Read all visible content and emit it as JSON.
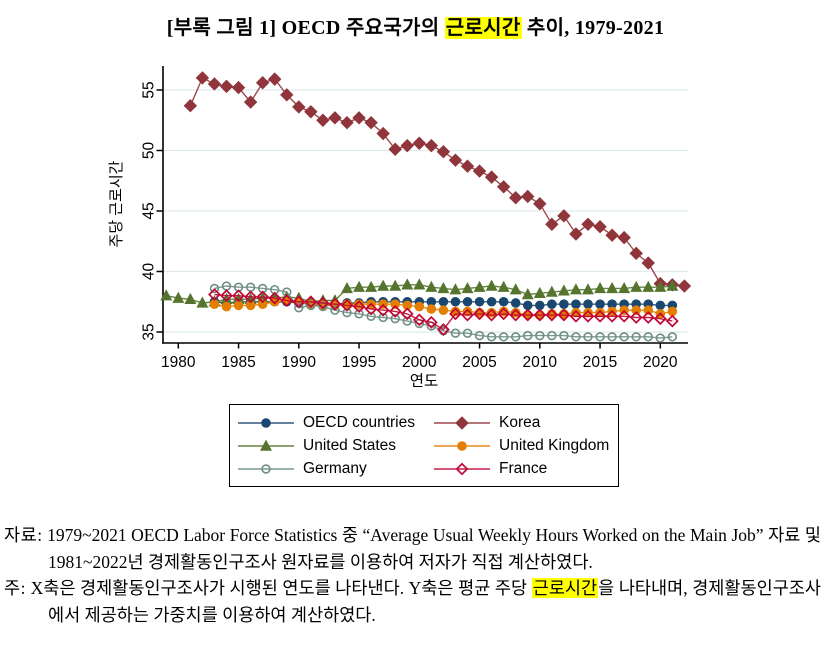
{
  "title": {
    "prefix": "[부록 그림 1] OECD 주요국가의 ",
    "highlight": "근로시간",
    "suffix": " 추이, 1979-2021"
  },
  "highlight_color": "#ffff00",
  "chart_data": {
    "type": "line",
    "xlabel": "연도",
    "ylabel": "주당 근로시간",
    "x_ticks": [
      1980,
      1985,
      1990,
      1995,
      2000,
      2005,
      2010,
      2015,
      2020
    ],
    "y_ticks": [
      35,
      40,
      45,
      50,
      55
    ],
    "xlim": [
      1978.5,
      2022.8
    ],
    "ylim": [
      34.1,
      57.0
    ],
    "grid": "horizontal",
    "grid_color": "#dfe9ee",
    "axis_color": "#000000",
    "legend_position": "bottom",
    "legend_columns": 2,
    "series": [
      {
        "name": "OECD countries",
        "color": "#1a476f",
        "marker": "circle",
        "filled": true,
        "start_year": 1983,
        "values": [
          37.5,
          37.4,
          37.5,
          37.5,
          37.5,
          37.5,
          37.5,
          37.4,
          37.3,
          37.3,
          37.3,
          37.4,
          37.4,
          37.5,
          37.5,
          37.5,
          37.5,
          37.5,
          37.5,
          37.5,
          37.5,
          37.5,
          37.5,
          37.5,
          37.5,
          37.4,
          37.2,
          37.2,
          37.3,
          37.3,
          37.3,
          37.3,
          37.3,
          37.3,
          37.3,
          37.3,
          37.3,
          37.2,
          37.2
        ]
      },
      {
        "name": "Korea",
        "color": "#90353b",
        "marker": "diamond",
        "filled": true,
        "start_year": 1981,
        "values": [
          53.7,
          56.0,
          55.5,
          55.3,
          55.2,
          54.0,
          55.6,
          55.9,
          54.6,
          53.6,
          53.2,
          52.5,
          52.7,
          52.3,
          52.7,
          52.3,
          51.4,
          50.1,
          50.4,
          50.6,
          50.4,
          49.9,
          49.2,
          48.7,
          48.3,
          47.8,
          47.0,
          46.1,
          46.2,
          45.6,
          43.9,
          44.6,
          43.1,
          43.9,
          43.7,
          43.0,
          42.8,
          41.5,
          40.7,
          39.0,
          38.9,
          38.8
        ]
      },
      {
        "name": "United States",
        "color": "#55752f",
        "marker": "triangle",
        "filled": true,
        "start_year": 1979,
        "values": [
          38.0,
          37.8,
          37.7,
          37.4,
          37.5,
          37.7,
          37.7,
          37.7,
          37.8,
          37.8,
          37.9,
          37.8,
          37.5,
          37.6,
          37.6,
          38.6,
          38.7,
          38.7,
          38.8,
          38.8,
          38.9,
          38.9,
          38.7,
          38.6,
          38.5,
          38.6,
          38.7,
          38.8,
          38.7,
          38.5,
          38.1,
          38.2,
          38.3,
          38.4,
          38.5,
          38.5,
          38.6,
          38.6,
          38.6,
          38.7,
          38.7,
          38.7,
          38.8
        ]
      },
      {
        "name": "United Kingdom",
        "color": "#e37e00",
        "marker": "circle",
        "filled": true,
        "start_year": 1983,
        "values": [
          37.3,
          37.1,
          37.2,
          37.2,
          37.3,
          37.5,
          37.6,
          37.5,
          37.3,
          37.2,
          37.2,
          37.3,
          37.3,
          37.3,
          37.3,
          37.3,
          37.2,
          37.1,
          36.9,
          36.8,
          36.7,
          36.7,
          36.6,
          36.6,
          36.7,
          36.6,
          36.4,
          36.4,
          36.5,
          36.5,
          36.6,
          36.6,
          36.6,
          36.7,
          36.8,
          36.8,
          36.8,
          36.5,
          36.7
        ]
      },
      {
        "name": "Germany",
        "color": "#6e8e84",
        "marker": "circle",
        "filled": false,
        "start_year": 1983,
        "values": [
          38.6,
          38.8,
          38.7,
          38.7,
          38.6,
          38.5,
          38.3,
          37.0,
          37.2,
          37.1,
          36.8,
          36.6,
          36.5,
          36.3,
          36.2,
          36.1,
          35.9,
          35.7,
          35.5,
          35.1,
          34.9,
          34.9,
          34.7,
          34.6,
          34.6,
          34.6,
          34.7,
          34.7,
          34.7,
          34.7,
          34.6,
          34.6,
          34.6,
          34.6,
          34.6,
          34.6,
          34.6,
          34.5,
          34.6
        ]
      },
      {
        "name": "France",
        "color": "#c10534",
        "marker": "diamond",
        "filled": false,
        "start_year": 1983,
        "values": [
          38.1,
          38.0,
          38.0,
          37.9,
          37.9,
          37.8,
          37.6,
          37.5,
          37.5,
          37.4,
          37.3,
          37.2,
          37.1,
          36.9,
          36.8,
          36.7,
          36.5,
          36.0,
          35.8,
          35.2,
          36.5,
          36.4,
          36.5,
          36.4,
          36.5,
          36.4,
          36.4,
          36.4,
          36.4,
          36.4,
          36.3,
          36.3,
          36.3,
          36.3,
          36.3,
          36.2,
          36.2,
          36.1,
          35.9
        ]
      }
    ]
  },
  "footer": {
    "source_label": "자료:",
    "source_text": "1979~2021 OECD Labor Force Statistics 중 “Average Usual Weekly Hours Worked on the Main Job” 자료 및 1981~2022년 경제활동인구조사 원자료를 이용하여 저자가 직접 계산하였다.",
    "note_label": "주:",
    "note_before": "X축은 경제활동인구조사가 시행된 연도를 나타낸다. Y축은 평균 주당 ",
    "note_highlight": "근로시간",
    "note_after": "을 나타내며, 경제활동인구조사에서 제공하는 가중치를 이용하여 계산하였다."
  }
}
